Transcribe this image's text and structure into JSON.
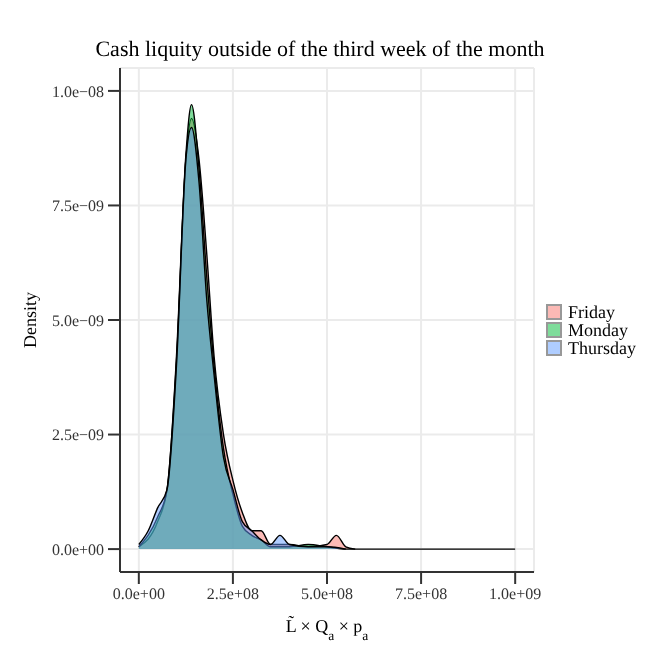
{
  "chart_data": {
    "type": "area",
    "title": "Cash liquity outside of the third week of the month",
    "xlabel": "L̃ × Q$_{a}$ × p$_{a}$",
    "ylabel": "Density",
    "xlim": [
      -50000000,
      1050000000
    ],
    "ylim": [
      -5e-10,
      1.05e-08
    ],
    "xticks": [
      {
        "value": 0,
        "label": "0.0e+00"
      },
      {
        "value": 250000000,
        "label": "2.5e+08"
      },
      {
        "value": 500000000,
        "label": "5.0e+08"
      },
      {
        "value": 750000000,
        "label": "7.5e+08"
      },
      {
        "value": 1000000000,
        "label": "1.0e+09"
      }
    ],
    "yticks": [
      {
        "value": 0,
        "label": "0.0e+00"
      },
      {
        "value": 2.5e-09,
        "label": "2.5e−09"
      },
      {
        "value": 5e-09,
        "label": "5.0e−09"
      },
      {
        "value": 7.5e-09,
        "label": "7.5e−09"
      },
      {
        "value": 1e-08,
        "label": "1.0e−08"
      }
    ],
    "grid": true,
    "legend": "right",
    "series": [
      {
        "name": "Friday",
        "color": "#f8766d",
        "x": [
          0,
          50000000,
          75000000,
          100000000,
          125000000,
          140000000,
          160000000,
          180000000,
          200000000,
          225000000,
          250000000,
          275000000,
          300000000,
          325000000,
          350000000,
          400000000,
          450000000,
          500000000,
          525000000,
          550000000,
          575000000
        ],
        "values": [
          5e-11,
          6e-10,
          1.3e-09,
          4.1e-09,
          8.5e-09,
          9.4e-09,
          8.5e-09,
          6.5e-09,
          4.2e-09,
          2.5e-09,
          1.5e-09,
          8e-10,
          4e-10,
          4e-10,
          1e-10,
          1e-10,
          5e-11,
          1e-10,
          3e-10,
          5e-11,
          0
        ]
      },
      {
        "name": "Monday",
        "color": "#00ba38",
        "x": [
          0,
          50000000,
          75000000,
          100000000,
          125000000,
          140000000,
          160000000,
          180000000,
          200000000,
          225000000,
          250000000,
          275000000,
          300000000,
          325000000,
          350000000,
          400000000,
          450000000,
          500000000,
          550000000,
          1000000000
        ],
        "values": [
          5e-11,
          7e-10,
          1.3e-09,
          4.2e-09,
          8.6e-09,
          9.7e-09,
          8.3e-09,
          6e-09,
          4e-09,
          2.2e-09,
          1.2e-09,
          5e-10,
          3e-10,
          2e-10,
          5e-11,
          5e-11,
          1e-10,
          5e-11,
          0,
          0
        ]
      },
      {
        "name": "Thursday",
        "color": "#619cff",
        "x": [
          0,
          25000000,
          50000000,
          75000000,
          100000000,
          125000000,
          140000000,
          160000000,
          180000000,
          200000000,
          225000000,
          250000000,
          275000000,
          300000000,
          325000000,
          350000000,
          375000000,
          400000000,
          450000000,
          500000000,
          550000000
        ],
        "values": [
          1e-10,
          4e-10,
          9e-10,
          1.3e-09,
          4e-09,
          8.5e-09,
          9.2e-09,
          8e-09,
          5.5e-09,
          3.8e-09,
          2e-09,
          1.3e-09,
          6e-10,
          4e-10,
          2e-10,
          1e-10,
          3e-10,
          1e-10,
          5e-11,
          5e-11,
          0
        ]
      }
    ]
  }
}
